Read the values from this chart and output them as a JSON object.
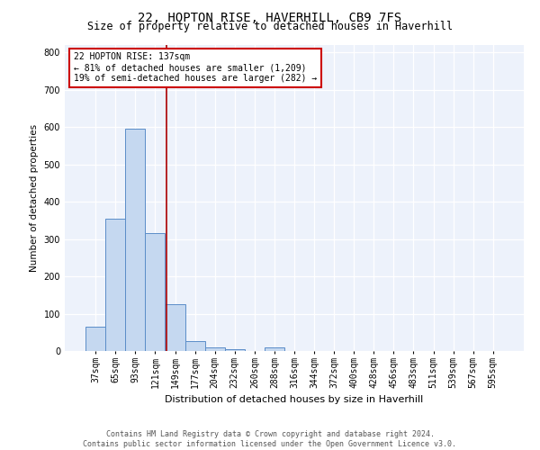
{
  "title": "22, HOPTON RISE, HAVERHILL, CB9 7FS",
  "subtitle": "Size of property relative to detached houses in Haverhill",
  "xlabel": "Distribution of detached houses by size in Haverhill",
  "ylabel": "Number of detached properties",
  "bin_labels": [
    "37sqm",
    "65sqm",
    "93sqm",
    "121sqm",
    "149sqm",
    "177sqm",
    "204sqm",
    "232sqm",
    "260sqm",
    "288sqm",
    "316sqm",
    "344sqm",
    "372sqm",
    "400sqm",
    "428sqm",
    "456sqm",
    "483sqm",
    "511sqm",
    "539sqm",
    "567sqm",
    "595sqm"
  ],
  "bar_heights": [
    65,
    355,
    595,
    315,
    125,
    27,
    10,
    5,
    0,
    10,
    0,
    0,
    0,
    0,
    0,
    0,
    0,
    0,
    0,
    0,
    0
  ],
  "bar_color": "#c5d8f0",
  "bar_edge_color": "#5b8dc8",
  "annotation_title": "22 HOPTON RISE: 137sqm",
  "annotation_line1": "← 81% of detached houses are smaller (1,209)",
  "annotation_line2": "19% of semi-detached houses are larger (282) →",
  "annotation_box_color": "white",
  "annotation_border_color": "#cc0000",
  "vline_color": "#aa0000",
  "footer1": "Contains HM Land Registry data © Crown copyright and database right 2024.",
  "footer2": "Contains public sector information licensed under the Open Government Licence v3.0.",
  "bg_color": "#edf2fb",
  "ylim": [
    0,
    820
  ],
  "yticks": [
    0,
    100,
    200,
    300,
    400,
    500,
    600,
    700,
    800
  ],
  "title_fontsize": 10,
  "subtitle_fontsize": 8.5,
  "ylabel_fontsize": 7.5,
  "xlabel_fontsize": 8,
  "tick_fontsize": 7,
  "annotation_fontsize": 7,
  "footer_fontsize": 6
}
